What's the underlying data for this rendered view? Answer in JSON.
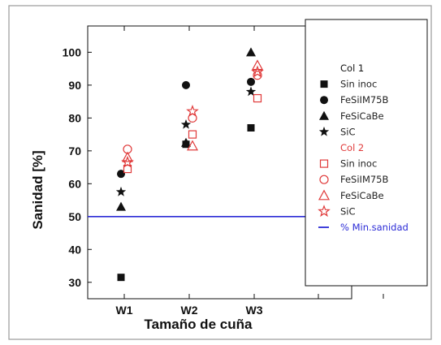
{
  "chart_data": {
    "type": "scatter",
    "title": "",
    "xlabel": "Tamaño de cuña",
    "ylabel": "Sanidad [%]",
    "categories": [
      "W1",
      "W2",
      "W3"
    ],
    "ylim": [
      25,
      108
    ],
    "yticks": [
      30,
      40,
      50,
      60,
      70,
      80,
      90,
      100
    ],
    "grid": false,
    "legend_position": "right",
    "reference_line": {
      "name": "% Min.sanidad",
      "value": 50,
      "color": "#2b2bd6"
    },
    "legend_groups": [
      {
        "title": "Col 1",
        "color": "#111111",
        "offset": -0.05
      },
      {
        "title": "Col 2",
        "color": "#e03a3a",
        "offset": 0.05
      }
    ],
    "series": [
      {
        "name": "Sin inoc",
        "group": 0,
        "marker": "square",
        "filled": true,
        "values": [
          31.5,
          72,
          77
        ]
      },
      {
        "name": "FeSiIM75B",
        "group": 0,
        "marker": "circle",
        "filled": true,
        "values": [
          63,
          90,
          91
        ]
      },
      {
        "name": "FeSiCaBe",
        "group": 0,
        "marker": "triangle",
        "filled": true,
        "values": [
          53,
          72.5,
          100
        ]
      },
      {
        "name": "SiC",
        "group": 0,
        "marker": "star",
        "filled": true,
        "values": [
          57.5,
          78,
          88
        ]
      },
      {
        "name": "Sin inoc",
        "group": 1,
        "marker": "square",
        "filled": false,
        "values": [
          64.5,
          75,
          86
        ]
      },
      {
        "name": "FeSiIM75B",
        "group": 1,
        "marker": "circle",
        "filled": false,
        "values": [
          70.5,
          80,
          93
        ]
      },
      {
        "name": "FeSiCaBe",
        "group": 1,
        "marker": "triangle",
        "filled": false,
        "values": [
          68,
          71.5,
          96
        ]
      },
      {
        "name": "SiC",
        "group": 1,
        "marker": "star",
        "filled": false,
        "values": [
          66.5,
          82,
          94
        ]
      }
    ]
  }
}
